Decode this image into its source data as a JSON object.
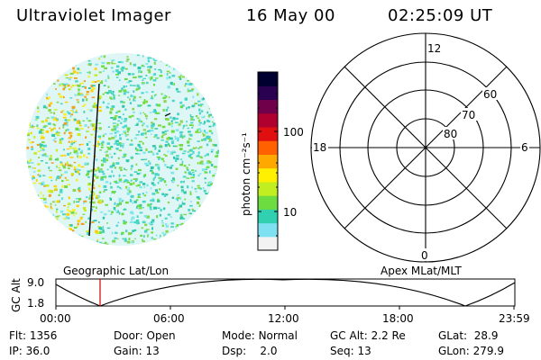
{
  "header": {
    "instrument": "Ultraviolet Imager",
    "date": "16 May 00",
    "time": "02:25:09 UT"
  },
  "colorbar": {
    "unit_label": "photon cm⁻²s⁻¹",
    "ticks": [
      "100",
      "10"
    ],
    "scale": "log",
    "colors": [
      "#f2f2f2",
      "#7ee0f0",
      "#30d0b0",
      "#6cdc40",
      "#c0ee20",
      "#ffef00",
      "#ffa800",
      "#ff6000",
      "#e01010",
      "#b00030",
      "#70004a",
      "#2a0050",
      "#000030"
    ]
  },
  "polar": {
    "labels_mlt": [
      "12",
      "18",
      "6",
      "0"
    ],
    "labels_lat": [
      "60",
      "70",
      "80"
    ]
  },
  "altitude_plot": {
    "ylabel": "GC Alt",
    "yticks": [
      "9.0",
      "1.8"
    ],
    "left_title": "Geographic Lat/Lon",
    "right_title": "Apex MLat/MLT",
    "xticks": [
      "00:00",
      "06:00",
      "12:00",
      "18:00",
      "23:59"
    ],
    "marker_time": "02:25",
    "marker_color": "#d00000"
  },
  "info": {
    "row1": [
      {
        "label": "Flt:",
        "value": "1356"
      },
      {
        "label": "Door:",
        "value": "Open"
      },
      {
        "label": "Mode:",
        "value": "Normal"
      },
      {
        "label": "GC Alt:",
        "value": "2.2 Re"
      },
      {
        "label": "GLat:",
        "value": "28.9"
      }
    ],
    "row2": [
      {
        "label": "IP:",
        "value": "36.0"
      },
      {
        "label": "Gain:",
        "value": "13"
      },
      {
        "label": "Dsp:",
        "value": "2.0"
      },
      {
        "label": "Seq:",
        "value": "13"
      },
      {
        "label": "GLon:",
        "value": "279.9"
      }
    ]
  }
}
